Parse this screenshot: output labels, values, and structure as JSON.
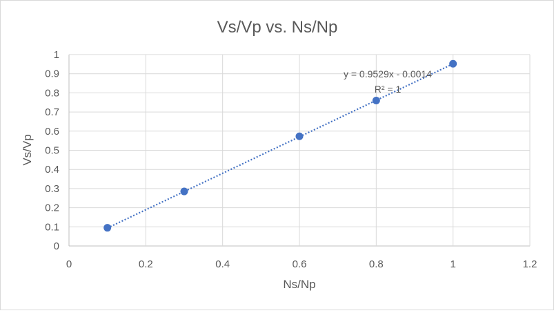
{
  "chart_data": {
    "type": "scatter",
    "title": "Vs/Vp vs. Ns/Np",
    "xlabel": "Ns/Np",
    "ylabel": "Vs/Vp",
    "xlim": [
      0,
      1.2
    ],
    "ylim": [
      0,
      1
    ],
    "xticks": [
      0,
      0.2,
      0.4,
      0.6,
      0.8,
      1,
      1.2
    ],
    "yticks": [
      0,
      0.1,
      0.2,
      0.3,
      0.4,
      0.5,
      0.6,
      0.7,
      0.8,
      0.9,
      1
    ],
    "grid": true,
    "legend": "none",
    "series": [
      {
        "x": [
          0.1,
          0.3,
          0.6,
          0.8,
          1.0
        ],
        "y": [
          0.095,
          0.285,
          0.573,
          0.76,
          0.952
        ],
        "color": "#4472c4"
      }
    ],
    "trendline": {
      "type": "linear",
      "slope": 0.9529,
      "intercept": -0.0014,
      "x_range": [
        0.1,
        1.0
      ],
      "color": "#4472c4",
      "style": "dotted",
      "equation_label": "y = 0.9529x - 0.0014",
      "r2_label": "R² = 1"
    }
  }
}
